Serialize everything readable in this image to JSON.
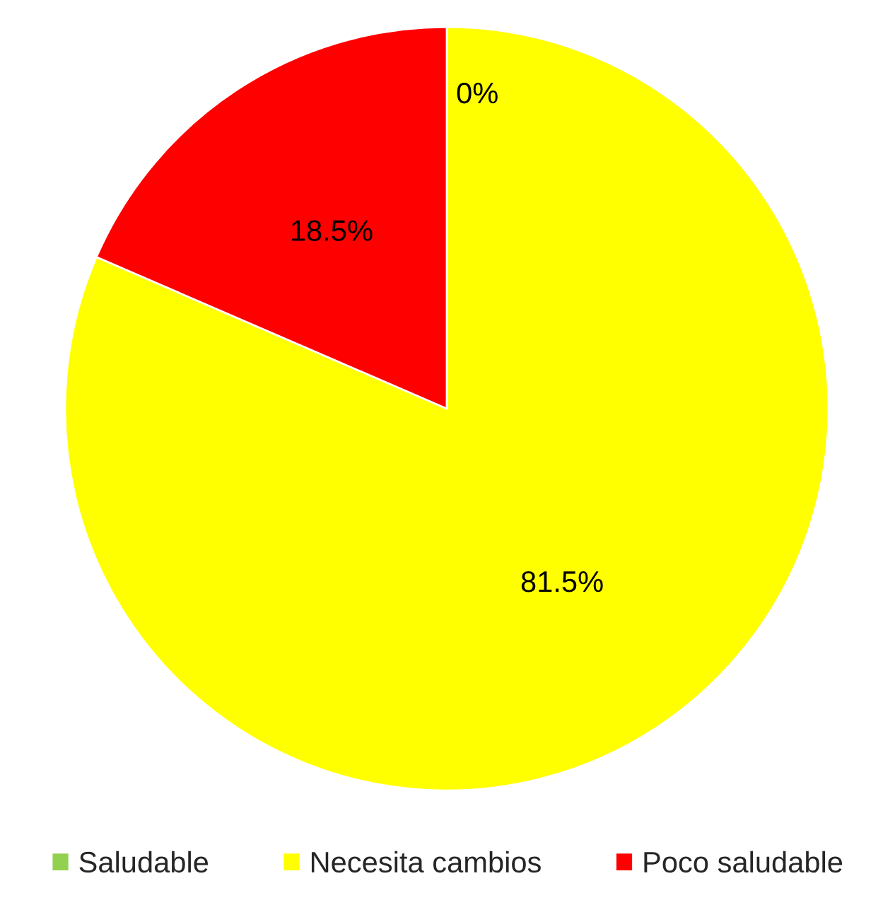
{
  "chart_data": {
    "type": "pie",
    "categories": [
      "Saludable",
      "Necesita cambios",
      "Poco saludable"
    ],
    "values": [
      0,
      81.5,
      18.5
    ],
    "colors": [
      "#92d050",
      "#ffff00",
      "#ff0000"
    ],
    "value_labels": [
      "0%",
      "81.5%",
      "18.5%"
    ],
    "legend": "bottom"
  }
}
